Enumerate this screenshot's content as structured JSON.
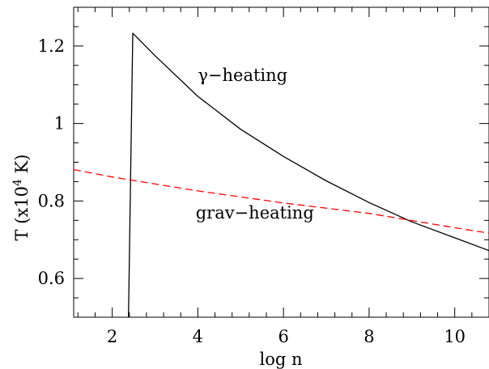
{
  "chart_data": {
    "type": "line",
    "xlabel": "log n",
    "ylabel": "T (x10",
    "ylabel_exp": "4",
    "ylabel_unit": " K)",
    "xlim": [
      1.1,
      10.8
    ],
    "ylim": [
      0.5,
      1.3
    ],
    "xticks": [
      2,
      4,
      6,
      8,
      10
    ],
    "yticks": [
      0.6,
      0.8,
      1,
      1.2
    ],
    "xtick_labels": [
      "2",
      "4",
      "6",
      "8",
      "10"
    ],
    "ytick_labels": [
      "0.6",
      "0.8",
      "1",
      "1.2"
    ],
    "series": [
      {
        "name": "γ−heating",
        "color": "#000000",
        "dash": "solid",
        "x": [
          2.38,
          2.48,
          3.0,
          4.0,
          5.0,
          6.0,
          7.0,
          8.0,
          9.0,
          10.0,
          10.8
        ],
        "y": [
          0.5,
          1.233,
          1.175,
          1.07,
          0.985,
          0.915,
          0.852,
          0.796,
          0.746,
          0.705,
          0.672
        ]
      },
      {
        "name": "grav−heating",
        "color": "#ff0000",
        "dash": "dashed",
        "x": [
          1.1,
          2.0,
          4.0,
          6.0,
          8.0,
          10.0,
          10.8
        ],
        "y": [
          0.881,
          0.862,
          0.826,
          0.795,
          0.768,
          0.731,
          0.717
        ]
      }
    ],
    "annotations": [
      {
        "text": "γ−heating",
        "x": 4.0,
        "y": 1.11
      },
      {
        "text": "grav−heating",
        "x": 3.95,
        "y": 0.755
      }
    ]
  }
}
